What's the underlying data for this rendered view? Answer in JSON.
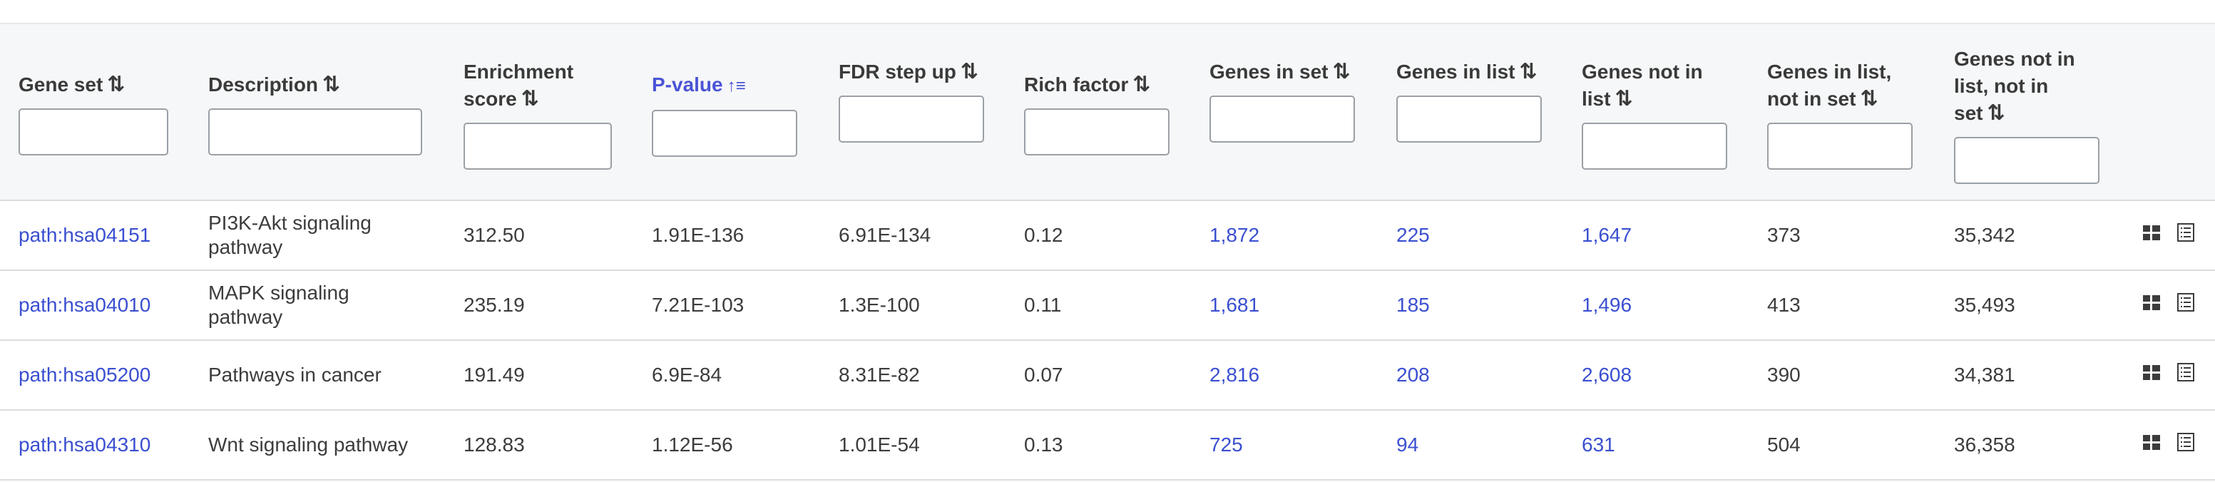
{
  "table": {
    "columns": [
      {
        "label": "Gene set",
        "sort_icon": "⇅",
        "active": false
      },
      {
        "label": "Description",
        "sort_icon": "⇅",
        "active": false
      },
      {
        "label": "Enrichment score",
        "sort_icon": "⇅",
        "active": false
      },
      {
        "label": "P-value",
        "sort_icon": "↑≡",
        "active": true
      },
      {
        "label": "FDR step up",
        "sort_icon": "⇅",
        "active": false
      },
      {
        "label": "Rich factor",
        "sort_icon": "⇅",
        "active": false
      },
      {
        "label": "Genes in set",
        "sort_icon": "⇅",
        "active": false
      },
      {
        "label": "Genes in list",
        "sort_icon": "⇅",
        "active": false
      },
      {
        "label": "Genes not in list",
        "sort_icon": "⇅",
        "active": false
      },
      {
        "label": "Genes in list, not in set",
        "sort_icon": "⇅",
        "active": false
      },
      {
        "label": "Genes not in list, not in set",
        "sort_icon": "⇅",
        "active": false
      }
    ],
    "rows": [
      {
        "gene_set": "path:hsa04151",
        "description": "PI3K-Akt signaling pathway",
        "enrichment_score": "312.50",
        "p_value": "1.91E-136",
        "fdr": "6.91E-134",
        "rich_factor": "0.12",
        "genes_in_set": "1,872",
        "genes_in_list": "225",
        "genes_not_in_list": "1,647",
        "in_list_not_in_set": "373",
        "not_in_list_not_in_set": "35,342"
      },
      {
        "gene_set": "path:hsa04010",
        "description": "MAPK signaling pathway",
        "enrichment_score": "235.19",
        "p_value": "7.21E-103",
        "fdr": "1.3E-100",
        "rich_factor": "0.11",
        "genes_in_set": "1,681",
        "genes_in_list": "185",
        "genes_not_in_list": "1,496",
        "in_list_not_in_set": "413",
        "not_in_list_not_in_set": "35,493"
      },
      {
        "gene_set": "path:hsa05200",
        "description": "Pathways in cancer",
        "enrichment_score": "191.49",
        "p_value": "6.9E-84",
        "fdr": "8.31E-82",
        "rich_factor": "0.07",
        "genes_in_set": "2,816",
        "genes_in_list": "208",
        "genes_not_in_list": "2,608",
        "in_list_not_in_set": "390",
        "not_in_list_not_in_set": "34,381"
      },
      {
        "gene_set": "path:hsa04310",
        "description": "Wnt signaling pathway",
        "enrichment_score": "128.83",
        "p_value": "1.12E-56",
        "fdr": "1.01E-54",
        "rich_factor": "0.13",
        "genes_in_set": "725",
        "genes_in_list": "94",
        "genes_not_in_list": "631",
        "in_list_not_in_set": "504",
        "not_in_list_not_in_set": "36,358"
      }
    ]
  },
  "icons": {
    "row_action_1": "grid-view-icon",
    "row_action_2": "list-view-icon"
  },
  "colors": {
    "link": "#3a4fd0",
    "active_sort": "#4a54d6",
    "header_bg": "#f6f7f8",
    "border": "#dcdde0"
  }
}
